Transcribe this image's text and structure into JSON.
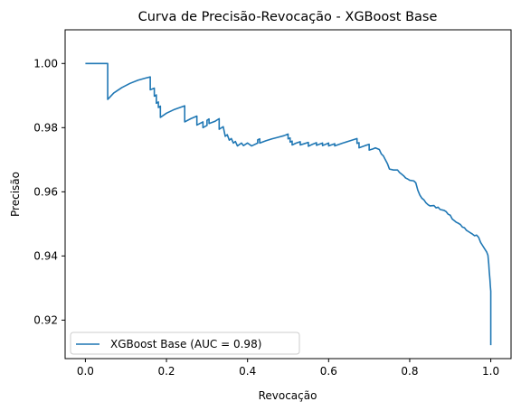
{
  "chart_data": {
    "type": "line",
    "title": "Curva de Precisão-Revocação - XGBoost Base",
    "xlabel": "Revocação",
    "ylabel": "Precisão",
    "xlim": [
      -0.05,
      1.05
    ],
    "ylim": [
      0.908,
      1.0105
    ],
    "xticks": [
      0.0,
      0.2,
      0.4,
      0.6,
      0.8,
      1.0
    ],
    "xtick_labels": [
      "0.0",
      "0.2",
      "0.4",
      "0.6",
      "0.8",
      "1.0"
    ],
    "yticks": [
      0.92,
      0.94,
      0.96,
      0.98,
      1.0
    ],
    "ytick_labels": [
      "0.92",
      "0.94",
      "0.96",
      "0.98",
      "1.00"
    ],
    "grid": false,
    "legend_position": "lower-left",
    "series": [
      {
        "name": "XGBoost Base (AUC = 0.98)",
        "color": "#1f77b4",
        "points": [
          [
            0.0,
            1.0
          ],
          [
            0.055,
            1.0
          ],
          [
            0.055,
            0.9888
          ],
          [
            0.07,
            0.9908
          ],
          [
            0.09,
            0.9925
          ],
          [
            0.11,
            0.9938
          ],
          [
            0.13,
            0.9948
          ],
          [
            0.15,
            0.9955
          ],
          [
            0.16,
            0.9958
          ],
          [
            0.16,
            0.9918
          ],
          [
            0.17,
            0.9923
          ],
          [
            0.17,
            0.9898
          ],
          [
            0.175,
            0.9902
          ],
          [
            0.175,
            0.9876
          ],
          [
            0.18,
            0.988
          ],
          [
            0.18,
            0.9863
          ],
          [
            0.185,
            0.9867
          ],
          [
            0.185,
            0.9832
          ],
          [
            0.2,
            0.9845
          ],
          [
            0.22,
            0.9857
          ],
          [
            0.245,
            0.9868
          ],
          [
            0.245,
            0.9818
          ],
          [
            0.26,
            0.9828
          ],
          [
            0.275,
            0.9836
          ],
          [
            0.275,
            0.9808
          ],
          [
            0.29,
            0.9818
          ],
          [
            0.29,
            0.98
          ],
          [
            0.3,
            0.9807
          ],
          [
            0.3,
            0.9823
          ],
          [
            0.305,
            0.9827
          ],
          [
            0.305,
            0.9813
          ],
          [
            0.32,
            0.982
          ],
          [
            0.33,
            0.9828
          ],
          [
            0.33,
            0.9795
          ],
          [
            0.34,
            0.9803
          ],
          [
            0.345,
            0.9773
          ],
          [
            0.35,
            0.9778
          ],
          [
            0.355,
            0.9761
          ],
          [
            0.36,
            0.9766
          ],
          [
            0.365,
            0.9752
          ],
          [
            0.37,
            0.9757
          ],
          [
            0.375,
            0.9743
          ],
          [
            0.385,
            0.9752
          ],
          [
            0.39,
            0.9744
          ],
          [
            0.4,
            0.9752
          ],
          [
            0.41,
            0.9743
          ],
          [
            0.425,
            0.9752
          ],
          [
            0.425,
            0.9762
          ],
          [
            0.43,
            0.9765
          ],
          [
            0.43,
            0.9752
          ],
          [
            0.445,
            0.9759
          ],
          [
            0.46,
            0.9765
          ],
          [
            0.475,
            0.977
          ],
          [
            0.49,
            0.9775
          ],
          [
            0.5,
            0.978
          ],
          [
            0.5,
            0.9765
          ],
          [
            0.505,
            0.9768
          ],
          [
            0.505,
            0.9755
          ],
          [
            0.51,
            0.9758
          ],
          [
            0.51,
            0.9746
          ],
          [
            0.52,
            0.9752
          ],
          [
            0.53,
            0.9756
          ],
          [
            0.53,
            0.9746
          ],
          [
            0.54,
            0.975
          ],
          [
            0.55,
            0.9754
          ],
          [
            0.55,
            0.9742
          ],
          [
            0.56,
            0.9748
          ],
          [
            0.57,
            0.9753
          ],
          [
            0.57,
            0.9745
          ],
          [
            0.585,
            0.9752
          ],
          [
            0.585,
            0.9744
          ],
          [
            0.6,
            0.9752
          ],
          [
            0.6,
            0.9743
          ],
          [
            0.615,
            0.975
          ],
          [
            0.615,
            0.9743
          ],
          [
            0.635,
            0.9752
          ],
          [
            0.65,
            0.9758
          ],
          [
            0.665,
            0.9764
          ],
          [
            0.67,
            0.9766
          ],
          [
            0.67,
            0.9751
          ],
          [
            0.675,
            0.9753
          ],
          [
            0.675,
            0.9737
          ],
          [
            0.69,
            0.9744
          ],
          [
            0.7,
            0.9748
          ],
          [
            0.7,
            0.973
          ],
          [
            0.71,
            0.9734
          ],
          [
            0.715,
            0.9737
          ],
          [
            0.725,
            0.9732
          ],
          [
            0.73,
            0.9718
          ],
          [
            0.735,
            0.9712
          ],
          [
            0.74,
            0.97
          ],
          [
            0.745,
            0.9688
          ],
          [
            0.75,
            0.9671
          ],
          [
            0.76,
            0.9668
          ],
          [
            0.77,
            0.9668
          ],
          [
            0.775,
            0.966
          ],
          [
            0.78,
            0.9655
          ],
          [
            0.785,
            0.965
          ],
          [
            0.79,
            0.9643
          ],
          [
            0.795,
            0.964
          ],
          [
            0.8,
            0.9636
          ],
          [
            0.81,
            0.9634
          ],
          [
            0.815,
            0.9628
          ],
          [
            0.82,
            0.9605
          ],
          [
            0.825,
            0.959
          ],
          [
            0.83,
            0.958
          ],
          [
            0.835,
            0.9575
          ],
          [
            0.84,
            0.9566
          ],
          [
            0.845,
            0.956
          ],
          [
            0.85,
            0.9556
          ],
          [
            0.86,
            0.9557
          ],
          [
            0.865,
            0.955
          ],
          [
            0.87,
            0.9552
          ],
          [
            0.875,
            0.9545
          ],
          [
            0.885,
            0.9542
          ],
          [
            0.89,
            0.9538
          ],
          [
            0.895,
            0.953
          ],
          [
            0.9,
            0.9527
          ],
          [
            0.905,
            0.9515
          ],
          [
            0.91,
            0.951
          ],
          [
            0.915,
            0.9505
          ],
          [
            0.92,
            0.9502
          ],
          [
            0.925,
            0.9498
          ],
          [
            0.93,
            0.949
          ],
          [
            0.935,
            0.9488
          ],
          [
            0.94,
            0.948
          ],
          [
            0.945,
            0.9476
          ],
          [
            0.95,
            0.9472
          ],
          [
            0.955,
            0.9468
          ],
          [
            0.96,
            0.9463
          ],
          [
            0.965,
            0.9465
          ],
          [
            0.97,
            0.9458
          ],
          [
            0.975,
            0.9442
          ],
          [
            0.98,
            0.9432
          ],
          [
            0.985,
            0.9422
          ],
          [
            0.99,
            0.9412
          ],
          [
            0.993,
            0.9402
          ],
          [
            0.995,
            0.9375
          ],
          [
            0.996,
            0.9355
          ],
          [
            0.997,
            0.934
          ],
          [
            0.998,
            0.9325
          ],
          [
            0.999,
            0.9305
          ],
          [
            1.0,
            0.929
          ],
          [
            1.0,
            0.9122
          ]
        ]
      }
    ]
  }
}
